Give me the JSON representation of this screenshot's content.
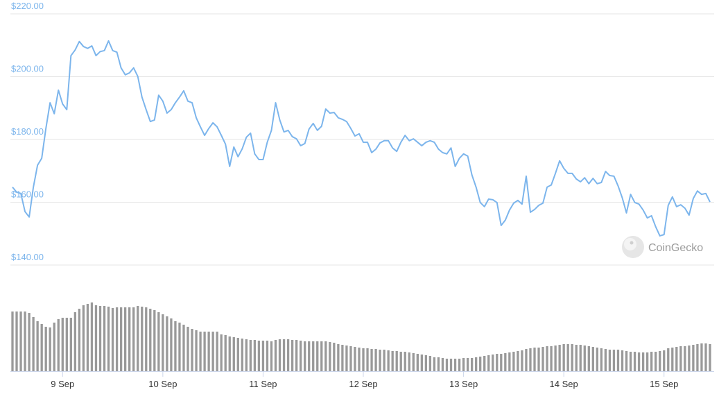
{
  "chart_data": {
    "type": "line",
    "color": "#7cb5ec",
    "ylim": [
      140,
      220
    ],
    "yticks": [
      {
        "value": 140,
        "label": "$140.00"
      },
      {
        "value": 160,
        "label": "$160.00"
      },
      {
        "value": 180,
        "label": "$180.00"
      },
      {
        "value": 200,
        "label": "$200.00"
      },
      {
        "value": 220,
        "label": "$220.00"
      }
    ],
    "grid": true,
    "watermark": "CoinGecko",
    "categories": [
      null,
      null,
      null,
      null,
      null,
      null,
      null,
      null,
      null,
      null,
      null,
      null,
      "9 Sep",
      null,
      null,
      null,
      null,
      null,
      null,
      null,
      null,
      null,
      null,
      null,
      null,
      null,
      null,
      null,
      null,
      null,
      null,
      null,
      null,
      null,
      null,
      null,
      "10 Sep",
      null,
      null,
      null,
      null,
      null,
      null,
      null,
      null,
      null,
      null,
      null,
      null,
      null,
      null,
      null,
      null,
      null,
      null,
      null,
      null,
      null,
      null,
      null,
      "11 Sep",
      null,
      null,
      null,
      null,
      null,
      null,
      null,
      null,
      null,
      null,
      null,
      null,
      null,
      null,
      null,
      null,
      null,
      null,
      null,
      null,
      null,
      null,
      null,
      "12 Sep",
      null,
      null,
      null,
      null,
      null,
      null,
      null,
      null,
      null,
      null,
      null,
      null,
      null,
      null,
      null,
      null,
      null,
      null,
      null,
      null,
      null,
      null,
      null,
      "13 Sep",
      null,
      null,
      null,
      null,
      null,
      null,
      null,
      null,
      null,
      null,
      null,
      null,
      null,
      null,
      null,
      null,
      null,
      null,
      null,
      null,
      null,
      null,
      null,
      "14 Sep",
      null,
      null,
      null,
      null,
      null,
      null,
      null,
      null,
      null,
      null,
      null,
      null,
      null,
      null,
      null,
      null,
      null,
      null,
      null,
      null,
      null,
      null,
      null,
      "15 Sep",
      null,
      null,
      null,
      null,
      null,
      null,
      null,
      null,
      null,
      null,
      null
    ],
    "values": [
      164.8,
      163.2,
      162.8,
      157,
      155.3,
      164.8,
      171.8,
      174,
      183.5,
      191.7,
      188.2,
      195.7,
      191.3,
      189.5,
      206.7,
      208.5,
      211.2,
      209.6,
      209,
      209.8,
      206.7,
      208,
      208.3,
      211.4,
      208.3,
      207.8,
      202.8,
      200.6,
      201.2,
      202.8,
      200.1,
      193.5,
      189.5,
      185.7,
      186.2,
      194.1,
      192.2,
      188.4,
      189.5,
      191.7,
      193.5,
      195.5,
      192.2,
      191.7,
      186.9,
      184,
      181.3,
      183.5,
      185.3,
      184,
      181.3,
      178.5,
      171.4,
      177.6,
      174.5,
      177,
      180.7,
      182,
      175.4,
      173.6,
      173.6,
      179.1,
      182.9,
      191.7,
      186.2,
      182.4,
      182.9,
      180.9,
      180.2,
      178,
      178.7,
      183.3,
      185.1,
      182.9,
      184.2,
      189.7,
      188.4,
      188.6,
      186.9,
      186.4,
      185.7,
      183.5,
      181.1,
      181.8,
      179.1,
      179.1,
      175.8,
      176.9,
      178.9,
      179.6,
      179.6,
      177.3,
      176.2,
      179.1,
      181.3,
      179.6,
      180.2,
      179.1,
      178,
      179.1,
      179.6,
      179.1,
      176.9,
      175.8,
      175.4,
      177.3,
      171.4,
      174,
      175.4,
      174.7,
      168.7,
      164.8,
      159.9,
      158.6,
      161,
      160.8,
      159.9,
      152.6,
      154.3,
      157.5,
      159.7,
      160.6,
      159.4,
      168.3,
      156.8,
      157.7,
      159,
      159.7,
      164.8,
      165.5,
      169.2,
      173.2,
      170.8,
      169.2,
      169.2,
      167.4,
      166.5,
      167.8,
      165.9,
      167.6,
      165.9,
      166.3,
      169.8,
      168.5,
      168.3,
      165.2,
      161.4,
      156.6,
      162.5,
      159.9,
      159.4,
      157.5,
      155,
      155.7,
      152.2,
      149.3,
      149.7,
      159,
      161.7,
      158.6,
      159.2,
      158.1,
      155.9,
      161.2,
      163.6,
      162.5,
      162.8,
      160.1
    ],
    "volume": {
      "type": "bar",
      "color": "#999999",
      "ylim": [
        0,
        100
      ],
      "values": [
        86,
        86,
        86,
        86,
        84,
        78,
        72,
        68,
        64,
        63,
        70,
        75,
        77,
        77,
        77,
        85,
        90,
        95,
        97,
        99,
        95,
        94,
        94,
        93,
        91,
        92,
        92,
        92,
        92,
        92,
        94,
        93,
        92,
        90,
        88,
        85,
        82,
        79,
        76,
        72,
        70,
        67,
        64,
        61,
        59,
        57,
        57,
        57,
        57,
        57,
        53,
        52,
        50,
        49,
        48,
        47,
        46,
        45,
        45,
        44,
        44,
        44,
        43,
        45,
        46,
        46,
        46,
        45,
        45,
        44,
        43,
        43,
        43,
        43,
        43,
        43,
        42,
        41,
        39,
        38,
        37,
        36,
        35,
        34,
        33,
        33,
        32,
        32,
        31,
        31,
        30,
        29,
        29,
        28,
        28,
        27,
        26,
        25,
        24,
        23,
        22,
        20,
        20,
        19,
        18,
        18,
        18,
        18,
        19,
        19,
        19,
        20,
        21,
        22,
        23,
        24,
        25,
        25,
        26,
        27,
        28,
        29,
        30,
        32,
        33,
        34,
        34,
        35,
        36,
        36,
        37,
        38,
        39,
        39,
        39,
        38,
        38,
        37,
        36,
        35,
        34,
        33,
        32,
        31,
        31,
        31,
        30,
        29,
        28,
        28,
        27,
        27,
        27,
        28,
        28,
        29,
        30,
        33,
        34,
        35,
        36,
        36,
        37,
        38,
        39,
        40,
        40,
        39
      ]
    }
  }
}
